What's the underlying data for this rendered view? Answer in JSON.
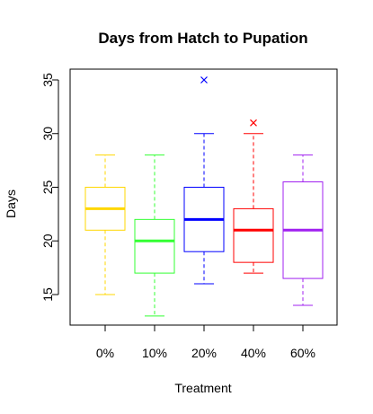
{
  "chart_data": {
    "type": "boxplot",
    "title": "Days from Hatch to Pupation",
    "xlabel": "Treatment",
    "ylabel": "Days",
    "ylim": [
      12,
      36
    ],
    "yticks": [
      15,
      20,
      25,
      30,
      35
    ],
    "grid": false,
    "categories": [
      "0%",
      "10%",
      "20%",
      "40%",
      "60%"
    ],
    "series": [
      {
        "category": "0%",
        "color": "#FFD700",
        "min": 15,
        "q1": 21,
        "median": 23,
        "q3": 25,
        "max": 28,
        "outliers": []
      },
      {
        "category": "10%",
        "color": "#33FF33",
        "min": 13,
        "q1": 17,
        "median": 20,
        "q3": 22,
        "max": 28,
        "outliers": []
      },
      {
        "category": "20%",
        "color": "#0000FF",
        "min": 16,
        "q1": 19,
        "median": 22,
        "q3": 25,
        "max": 30,
        "outliers": [
          35
        ]
      },
      {
        "category": "40%",
        "color": "#FF0000",
        "min": 17,
        "q1": 18,
        "median": 21,
        "q3": 23,
        "max": 30,
        "outliers": [
          31
        ]
      },
      {
        "category": "60%",
        "color": "#A020F0",
        "min": 14,
        "q1": 16.5,
        "median": 21,
        "q3": 25.5,
        "max": 28,
        "outliers": []
      }
    ]
  }
}
